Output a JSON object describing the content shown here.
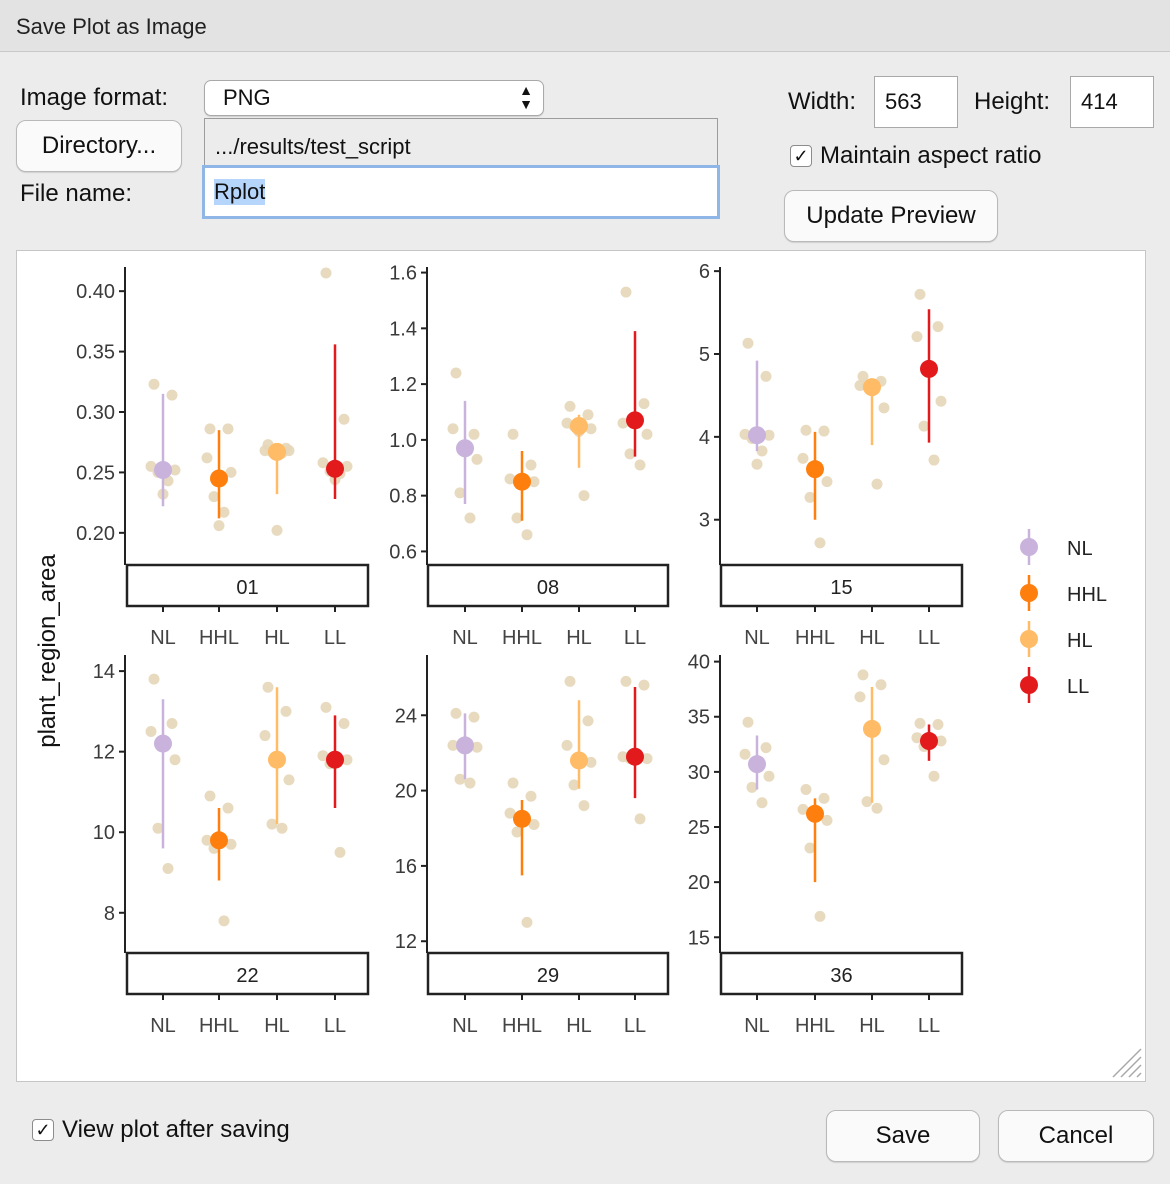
{
  "window": {
    "title": "Save Plot as Image"
  },
  "form": {
    "image_format_label": "Image format:",
    "image_format_value": "PNG",
    "directory_button": "Directory...",
    "directory_path": ".../results/test_script",
    "file_name_label": "File name:",
    "file_name_value": "Rplot",
    "width_label": "Width:",
    "width_value": "563",
    "height_label": "Height:",
    "height_value": "414",
    "maintain_aspect_label": "Maintain aspect ratio",
    "maintain_aspect_checked": true,
    "update_preview_button": "Update Preview"
  },
  "footer": {
    "view_after_saving_label": "View plot after saving",
    "view_after_saving_checked": true,
    "save_button": "Save",
    "cancel_button": "Cancel"
  },
  "chart_data": {
    "type": "scatter",
    "ylabel": "plant_region_area",
    "xlabel": "",
    "categories": [
      "NL",
      "HHL",
      "HL",
      "LL"
    ],
    "legend": {
      "placement": "right",
      "entries": [
        {
          "name": "NL",
          "color": "#c9b3dc"
        },
        {
          "name": "HHL",
          "color": "#ff7f0e"
        },
        {
          "name": "HL",
          "color": "#ffbb66"
        },
        {
          "name": "LL",
          "color": "#e31a1c"
        }
      ]
    },
    "raw_point_color": "#e6d6b8",
    "panels": [
      {
        "label": "01",
        "ylim": [
          0.18,
          0.42
        ],
        "yticks": [
          0.2,
          0.25,
          0.3,
          0.35,
          0.4
        ],
        "tick_labels": [
          "0.20",
          "0.25",
          "0.30",
          "0.35",
          "0.40"
        ],
        "groups": [
          {
            "mean": 0.252,
            "low": 0.222,
            "high": 0.315,
            "points": [
              0.323,
              0.314,
              0.255,
              0.252,
              0.25,
              0.243,
              0.232
            ]
          },
          {
            "mean": 0.245,
            "low": 0.212,
            "high": 0.285,
            "points": [
              0.286,
              0.286,
              0.262,
              0.25,
              0.23,
              0.217,
              0.206
            ]
          },
          {
            "mean": 0.267,
            "low": 0.232,
            "high": 0.272,
            "points": [
              0.273,
              0.27,
              0.268,
              0.268,
              0.267,
              0.266,
              0.202
            ]
          },
          {
            "mean": 0.253,
            "low": 0.228,
            "high": 0.356,
            "points": [
              0.415,
              0.294,
              0.258,
              0.255,
              0.251,
              0.249,
              0.244
            ]
          }
        ]
      },
      {
        "label": "08",
        "ylim": [
          0.58,
          1.62
        ],
        "yticks": [
          0.6,
          0.8,
          1.0,
          1.2,
          1.4,
          1.6
        ],
        "tick_labels": [
          "0.6",
          "0.8",
          "1.0",
          "1.2",
          "1.4",
          "1.6"
        ],
        "groups": [
          {
            "mean": 0.97,
            "low": 0.77,
            "high": 1.14,
            "points": [
              1.24,
              1.02,
              1.04,
              0.93,
              0.81,
              0.72,
              0.98
            ]
          },
          {
            "mean": 0.85,
            "low": 0.71,
            "high": 0.96,
            "points": [
              1.02,
              0.91,
              0.86,
              0.85,
              0.72,
              0.66,
              0.84
            ]
          },
          {
            "mean": 1.05,
            "low": 0.9,
            "high": 1.09,
            "points": [
              1.12,
              1.09,
              1.06,
              1.04,
              1.05,
              0.8,
              1.03
            ]
          },
          {
            "mean": 1.07,
            "low": 0.94,
            "high": 1.39,
            "points": [
              1.53,
              1.13,
              1.06,
              1.02,
              0.95,
              0.91,
              1.08
            ]
          }
        ]
      },
      {
        "label": "15",
        "ylim": [
          2.55,
          6.05
        ],
        "yticks": [
          3,
          4,
          5,
          6
        ],
        "tick_labels": [
          "3",
          "4",
          "5",
          "6"
        ],
        "groups": [
          {
            "mean": 4.02,
            "low": 3.83,
            "high": 4.92,
            "points": [
              5.13,
              4.73,
              4.03,
              4.02,
              3.98,
              3.83,
              3.67
            ]
          },
          {
            "mean": 3.61,
            "low": 3.0,
            "high": 4.06,
            "points": [
              4.08,
              4.07,
              3.74,
              3.46,
              3.27,
              2.72,
              3.58
            ]
          },
          {
            "mean": 4.6,
            "low": 3.9,
            "high": 4.68,
            "points": [
              4.73,
              4.67,
              4.62,
              4.35,
              4.61,
              3.43,
              4.58
            ]
          },
          {
            "mean": 4.82,
            "low": 3.93,
            "high": 5.54,
            "points": [
              5.72,
              5.33,
              5.21,
              4.43,
              4.13,
              3.72,
              4.84
            ]
          }
        ]
      },
      {
        "label": "22",
        "ylim": [
          7.2,
          14.4
        ],
        "yticks": [
          8,
          10,
          12,
          14
        ],
        "tick_labels": [
          "8",
          "10",
          "12",
          "14"
        ],
        "groups": [
          {
            "mean": 12.2,
            "low": 9.6,
            "high": 13.3,
            "points": [
              13.8,
              12.7,
              12.5,
              11.8,
              10.1,
              9.1,
              12.2
            ]
          },
          {
            "mean": 9.8,
            "low": 8.8,
            "high": 10.6,
            "points": [
              10.9,
              10.6,
              9.8,
              9.7,
              9.6,
              7.8,
              9.8
            ]
          },
          {
            "mean": 11.8,
            "low": 10.2,
            "high": 13.6,
            "points": [
              13.6,
              13.0,
              12.4,
              11.3,
              10.2,
              10.1,
              11.8
            ]
          },
          {
            "mean": 11.8,
            "low": 10.6,
            "high": 12.9,
            "points": [
              13.1,
              12.7,
              11.9,
              11.8,
              11.7,
              9.5,
              11.8
            ]
          }
        ]
      },
      {
        "label": "29",
        "ylim": [
          11.8,
          27.2
        ],
        "yticks": [
          12,
          16,
          20,
          24
        ],
        "tick_labels": [
          "12",
          "16",
          "20",
          "24"
        ],
        "groups": [
          {
            "mean": 22.4,
            "low": 20.6,
            "high": 24.1,
            "points": [
              24.1,
              23.9,
              22.4,
              22.3,
              20.6,
              20.4,
              22.5
            ]
          },
          {
            "mean": 18.5,
            "low": 15.5,
            "high": 19.5,
            "points": [
              20.4,
              19.7,
              18.8,
              18.2,
              17.8,
              13.0,
              18.4
            ]
          },
          {
            "mean": 21.6,
            "low": 20.1,
            "high": 24.8,
            "points": [
              25.8,
              23.7,
              22.4,
              21.5,
              20.3,
              19.2,
              21.6
            ]
          },
          {
            "mean": 21.8,
            "low": 19.6,
            "high": 25.5,
            "points": [
              25.8,
              25.6,
              21.8,
              21.7,
              21.7,
              18.5,
              21.9
            ]
          }
        ]
      },
      {
        "label": "36",
        "ylim": [
          14.3,
          40.6
        ],
        "yticks": [
          15,
          20,
          25,
          30,
          35,
          40
        ],
        "tick_labels": [
          "15",
          "20",
          "25",
          "30",
          "35",
          "40"
        ],
        "groups": [
          {
            "mean": 30.7,
            "low": 28.4,
            "high": 33.3,
            "points": [
              34.5,
              32.2,
              31.6,
              29.6,
              28.6,
              27.2,
              30.8
            ]
          },
          {
            "mean": 26.2,
            "low": 20.0,
            "high": 27.6,
            "points": [
              28.4,
              27.6,
              26.6,
              25.6,
              23.1,
              16.9,
              26.3
            ]
          },
          {
            "mean": 33.9,
            "low": 27.2,
            "high": 37.7,
            "points": [
              38.8,
              37.9,
              36.8,
              31.1,
              27.3,
              26.7,
              34.0
            ]
          },
          {
            "mean": 32.8,
            "low": 31.0,
            "high": 34.3,
            "points": [
              34.4,
              34.3,
              33.1,
              32.8,
              32.3,
              29.6,
              32.9
            ]
          }
        ]
      }
    ]
  }
}
